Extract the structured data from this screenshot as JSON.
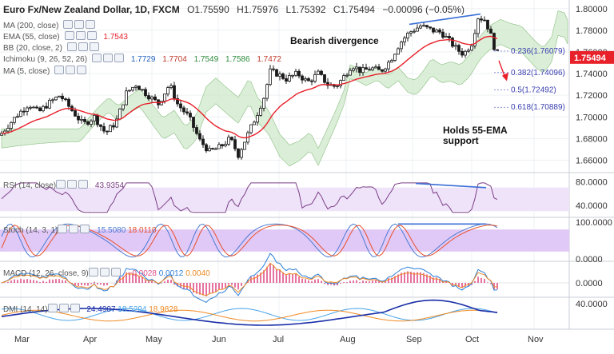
{
  "header": {
    "title": "Euro Fx/New Zealand Dollar, 1D, FXCM",
    "ohlc": {
      "o": "O1.75590",
      "h": "H1.75976",
      "l": "L1.75392",
      "c": "C1.75494"
    },
    "change": "−0.00096 (−0.05%)"
  },
  "indicators": {
    "ma200": "MA (200, close)",
    "ema55": "EMA (55, close)",
    "ema55_value": "1.7543",
    "bb": "BB (20, close, 2)",
    "ichimoku": "Ichimoku (9, 26, 52, 26)",
    "ichimoku_values": [
      "1.7729",
      "1.7704",
      "1.7549",
      "1.7586",
      "1.7472"
    ],
    "ma5": "MA (5, close)",
    "rsi": "RSI (14, close)",
    "rsi_value": "43.9354",
    "stoch": "Stoch (14, 3, 1)",
    "stoch_values": [
      "15.5080",
      "18.0110"
    ],
    "macd": "MACD (12, 26, close, 9)",
    "macd_values": [
      "−0.0028",
      "0.0012",
      "0.0040"
    ],
    "dmi": "DMI (14, 14)",
    "dmi_values": [
      "24.4907",
      "18.5294",
      "18.9828"
    ]
  },
  "annotations": {
    "bearish": "Bearish divergence",
    "holds": [
      "Holds 55-EMA",
      "support"
    ]
  },
  "colors": {
    "up": "#26a69a",
    "down": "#ef5350",
    "candle": "#1a1a1a",
    "ema": "#e8202a",
    "cloud": "#cfe8c9",
    "cloud_red": "#f7d4d4",
    "rsi_line": "#7b3f86",
    "rsi_band": "#efe3fa",
    "stoch_k": "#4a7bd1",
    "stoch_d": "#e8502a",
    "stoch_band": "#e0c8f7",
    "macd": "#2d7fd8",
    "signal": "#f08a24",
    "hist": "#e0508a",
    "dmi_adx": "#1b2fa8",
    "dmi_plus": "#4aa3e8",
    "dmi_minus": "#f08a24",
    "trend": "#3b6fd6",
    "price_tag": "#e8202a"
  },
  "chart_data": {
    "type": "candlestick",
    "x_labels": [
      "Mar",
      "Apr",
      "May",
      "Jun",
      "Jul",
      "Aug",
      "Sep",
      "Oct",
      "Nov"
    ],
    "price_ticks": [
      "1.80000",
      "1.78000",
      "1.76000",
      "1.74000",
      "1.72000",
      "1.70000",
      "1.68000",
      "1.66000"
    ],
    "price_range": [
      1.65,
      1.805
    ],
    "last_price": "1.75494",
    "fibonacci": [
      {
        "label": "0.236(1.76079)",
        "value": 1.76079
      },
      {
        "label": "0.382(1.74096)",
        "value": 1.74096
      },
      {
        "label": "0.5(1.72492)",
        "value": 1.72492
      },
      {
        "label": "0.618(1.70889)",
        "value": 1.70889
      }
    ],
    "rsi_ticks": [
      "80.0000",
      "40.0000"
    ],
    "stoch_ticks": [
      "100.0000",
      "0.0000"
    ],
    "macd_ticks": [
      "0.0000"
    ],
    "dmi_ticks": [
      "40.0000"
    ]
  }
}
